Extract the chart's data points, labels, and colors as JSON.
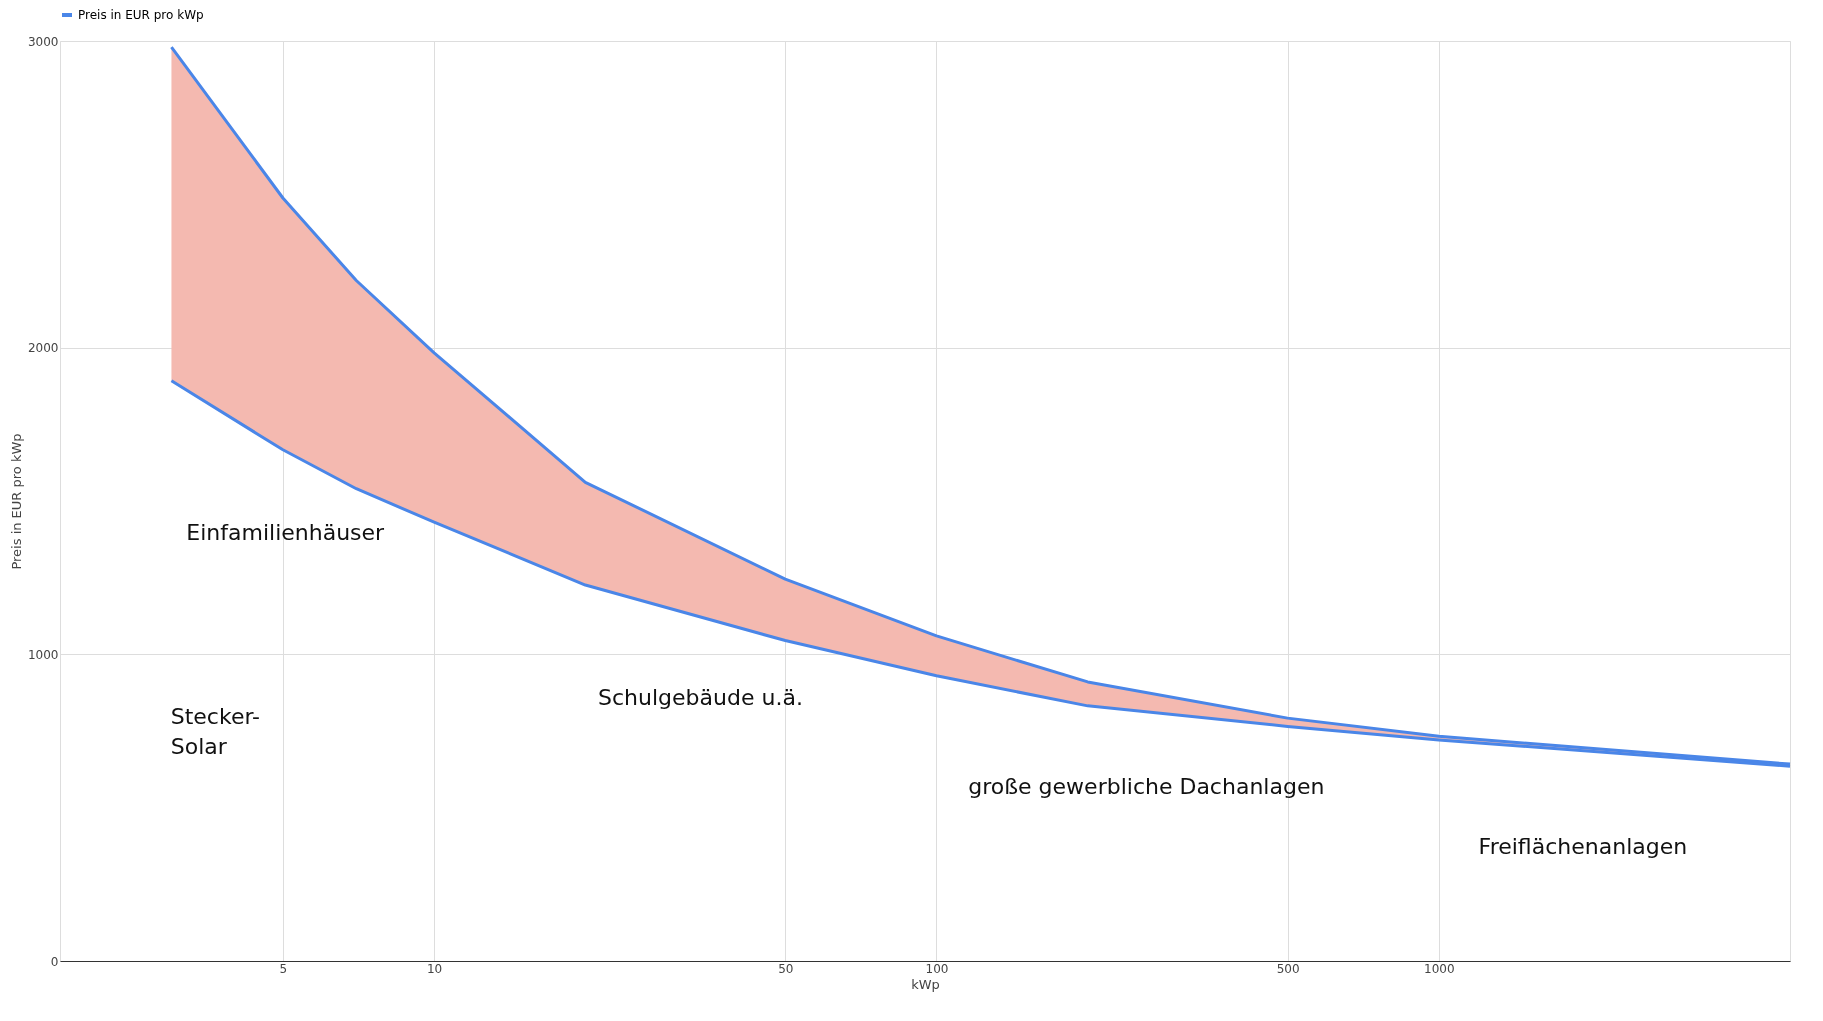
{
  "chart_data": {
    "type": "line",
    "xlabel": "kWp",
    "ylabel": "Preis in EUR pro kWp",
    "x": [
      3,
      5,
      7,
      10,
      20,
      50,
      100,
      200,
      500,
      1000,
      5000
    ],
    "series": [
      {
        "name": "Preis in EUR pro kWp",
        "color": "#4a86e8",
        "values": [
          2980,
          2488,
          2219,
          1983,
          1561,
          1245,
          1060,
          910,
          792,
          733,
          642
        ],
        "lower": [
          1892,
          1667,
          1540,
          1431,
          1226,
          1045,
          930,
          832,
          765,
          721,
          635
        ],
        "upper": [
          2980,
          2488,
          2219,
          1983,
          1561,
          1245,
          1060,
          910,
          792,
          733,
          642
        ]
      },
      {
        "color": "#4a86e8",
        "values": [
          1892,
          1667,
          1540,
          1431,
          1226,
          1045,
          930,
          832,
          765,
          721,
          635
        ]
      }
    ],
    "log": "x",
    "xlim": [
      1.8,
      5000
    ],
    "xticks": [
      5,
      10,
      50,
      100,
      500,
      1000
    ],
    "ylim": [
      0,
      3000
    ],
    "yticks": [
      0,
      1000,
      2000,
      3000
    ],
    "grid": true,
    "legend": "top",
    "marker": "none",
    "line_style": "solid",
    "annotations": [
      "Einfamilienhäuser",
      "Stecker-\nSolar",
      "Schulgebäude u.ä.",
      "große gewerbliche Dachanlagen",
      "Freiflächenanlagen"
    ]
  }
}
